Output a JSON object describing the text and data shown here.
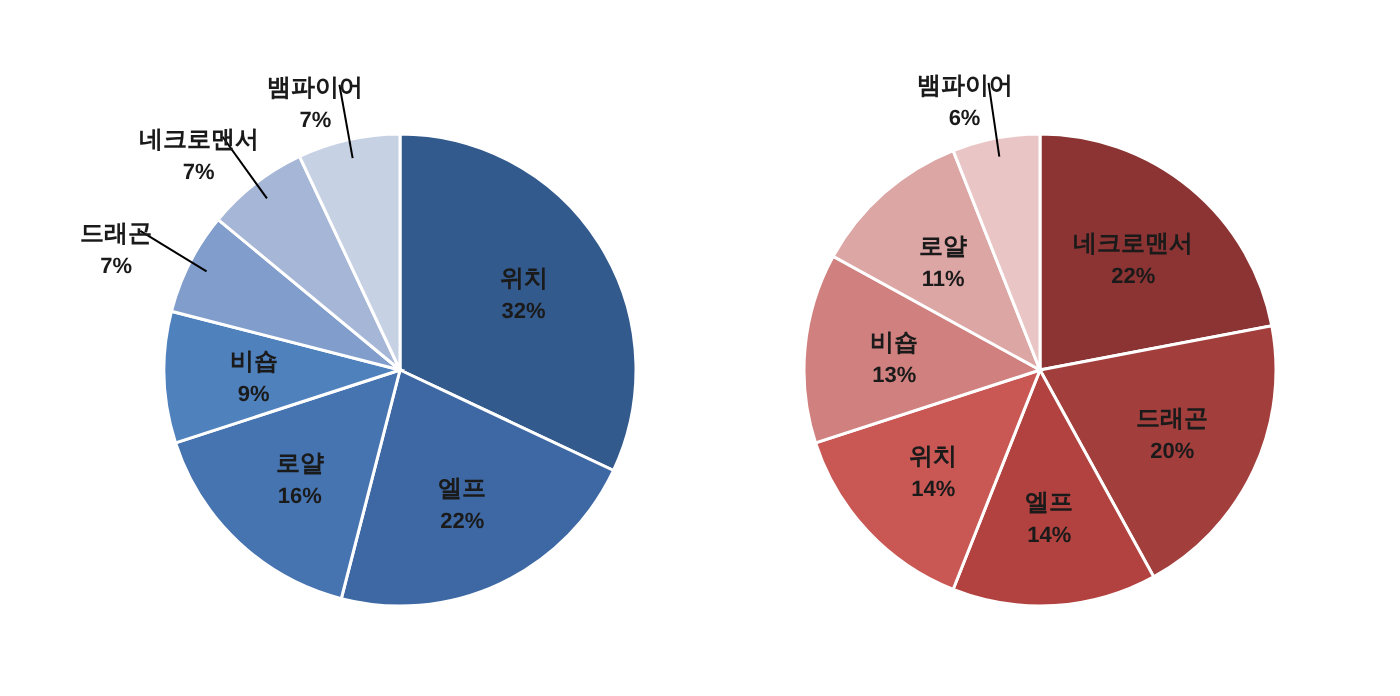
{
  "chart_data": [
    {
      "type": "pie",
      "categories": [
        "위치",
        "엘프",
        "로얄",
        "비숍",
        "드래곤",
        "네크로맨서",
        "뱀파이어"
      ],
      "values": [
        32,
        22,
        16,
        9,
        7,
        7,
        7
      ],
      "value_labels": [
        "32%",
        "22%",
        "16%",
        "9%",
        "7%",
        "7%",
        "7%"
      ],
      "colors": [
        "#335a8c",
        "#3d68a3",
        "#4674b0",
        "#4f81bd",
        "#819dcb",
        "#a6b6d6",
        "#c6d1e4"
      ]
    },
    {
      "type": "pie",
      "categories": [
        "네크로맨서",
        "드래곤",
        "엘프",
        "위치",
        "비숍",
        "로얄",
        "뱀파이어"
      ],
      "values": [
        22,
        20,
        14,
        14,
        13,
        11,
        6
      ],
      "value_labels": [
        "22%",
        "20%",
        "14%",
        "14%",
        "13%",
        "11%",
        "6%"
      ],
      "colors": [
        "#8b3433",
        "#a23f3d",
        "#b2423f",
        "#c95855",
        "#d0817f",
        "#dca6a5",
        "#e9c6c5"
      ]
    }
  ]
}
